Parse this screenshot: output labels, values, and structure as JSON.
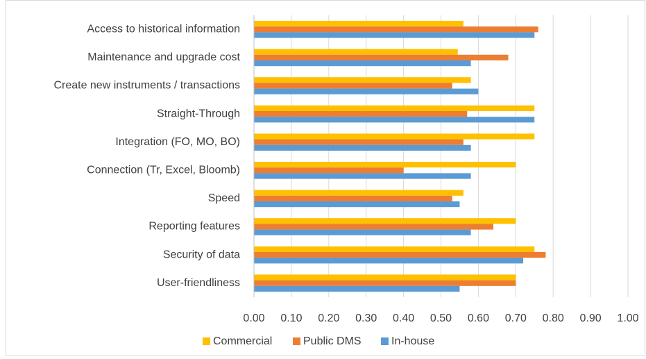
{
  "chart_data": {
    "type": "hbar",
    "categories": [
      "Access to historical information",
      "Maintenance and upgrade cost",
      "Create new instruments / transactions",
      "Straight-Through",
      "Integration (FO, MO, BO)",
      "Connection (Tr, Excel, Bloomb)",
      "Speed",
      "Reporting features",
      "Security of data",
      "User-friendliness"
    ],
    "series": [
      {
        "name": "Commercial",
        "color": "#ffc000",
        "values": [
          0.56,
          0.545,
          0.58,
          0.75,
          0.75,
          0.7,
          0.56,
          0.7,
          0.75,
          0.7
        ]
      },
      {
        "name": "Public DMS",
        "color": "#ed7d31",
        "values": [
          0.76,
          0.68,
          0.53,
          0.57,
          0.56,
          0.4,
          0.53,
          0.64,
          0.78,
          0.7
        ]
      },
      {
        "name": "In-house",
        "color": "#5b9bd5",
        "values": [
          0.75,
          0.58,
          0.6,
          0.75,
          0.58,
          0.58,
          0.55,
          0.58,
          0.72,
          0.55
        ]
      }
    ],
    "xlim": [
      0,
      1
    ],
    "xticks": [
      {
        "value": 0,
        "label": "0.00"
      },
      {
        "value": 0.1,
        "label": "0.10"
      },
      {
        "value": 0.2,
        "label": "0.20"
      },
      {
        "value": 0.3,
        "label": "0.30"
      },
      {
        "value": 0.4,
        "label": "0.40"
      },
      {
        "value": 0.5,
        "label": "0.50"
      },
      {
        "value": 0.6,
        "label": "0.60"
      },
      {
        "value": 0.7,
        "label": "0.70"
      },
      {
        "value": 0.8,
        "label": "0.80"
      },
      {
        "value": 0.9,
        "label": "0.90"
      },
      {
        "value": 1,
        "label": "1.00"
      }
    ],
    "grid": true,
    "legend": "bottom"
  }
}
